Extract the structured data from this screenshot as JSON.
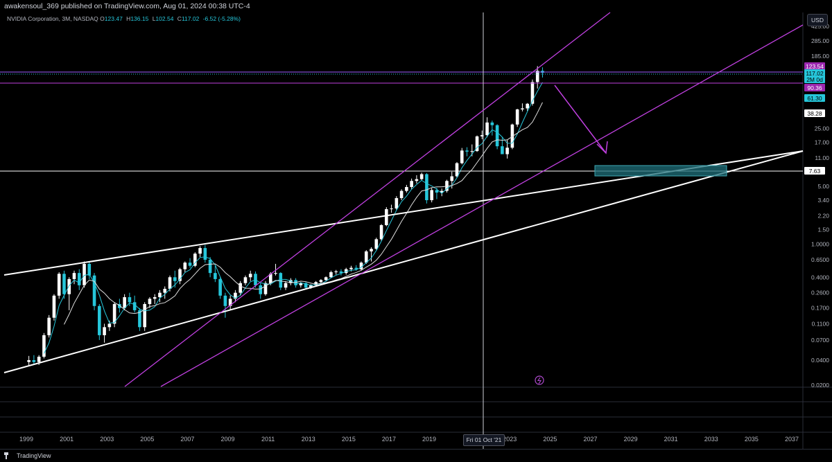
{
  "header": {
    "published": "awakensoul_369 published on TradingView.com, Aug 01, 2024 00:38 UTC-4"
  },
  "legend": {
    "symbol": "NVIDIA Corporation, 3M, NASDAQ",
    "open_label": "O",
    "open": "123.47",
    "high_label": "H",
    "high": "136.15",
    "low_label": "L",
    "low": "102.54",
    "close_label": "C",
    "close": "117.02",
    "change": "-6.52 (-5.28%)"
  },
  "currency": "USD",
  "price_scale": [
    "425.00",
    "285.00",
    "185.00",
    "25.00",
    "17.00",
    "11.00",
    "5.00",
    "3.40",
    "2.20",
    "1.50",
    "1.0000",
    "0.6500",
    "0.4000",
    "0.2600",
    "0.1700",
    "0.1100",
    "0.0700",
    "0.0400",
    "0.0200"
  ],
  "price_tags": [
    {
      "text": "123.54",
      "bg": "#9c27b0",
      "fg": "#ffffff"
    },
    {
      "text": "117.02",
      "bg": "#26c6da",
      "fg": "#000000"
    },
    {
      "text": "2M 0d",
      "bg": "#26c6da",
      "fg": "#000000"
    },
    {
      "text": "90.36",
      "bg": "#9c27b0",
      "fg": "#ffffff"
    },
    {
      "text": "61.30",
      "bg": "#26c6da",
      "fg": "#000000"
    },
    {
      "text": "38.28",
      "bg": "#ffffff",
      "fg": "#000000"
    },
    {
      "text": "7.63",
      "bg": "#ffffff",
      "fg": "#000000"
    }
  ],
  "time_scale": [
    "1999",
    "2001",
    "2003",
    "2005",
    "2007",
    "2009",
    "2011",
    "2013",
    "2015",
    "2017",
    "2019",
    "2023",
    "2025",
    "2027",
    "2029",
    "2031",
    "2033",
    "2035",
    "2037"
  ],
  "crosshair_date": "Fri 01 Oct '21",
  "footer": {
    "brand": "TradingView"
  },
  "colors": {
    "bull": "#ffffff",
    "bear": "#26c6da",
    "channel": "#c040e0",
    "trend": "#ffffff",
    "target_box": "#1f6f7a",
    "arrow": "#c040e0"
  },
  "icons": {
    "alert": "lightning-icon"
  },
  "chart_data": {
    "type": "candlestick",
    "symbol": "NVDA",
    "interval": "3M",
    "scale": "log",
    "ylim": [
      0.018,
      500
    ],
    "candles": [
      {
        "t": 1999.0,
        "o": 0.038,
        "h": 0.045,
        "l": 0.034,
        "c": 0.04
      },
      {
        "t": 1999.25,
        "o": 0.04,
        "h": 0.046,
        "l": 0.036,
        "c": 0.038
      },
      {
        "t": 1999.5,
        "o": 0.038,
        "h": 0.046,
        "l": 0.035,
        "c": 0.044
      },
      {
        "t": 1999.75,
        "o": 0.044,
        "h": 0.085,
        "l": 0.042,
        "c": 0.08
      },
      {
        "t": 2000.0,
        "o": 0.08,
        "h": 0.14,
        "l": 0.075,
        "c": 0.13
      },
      {
        "t": 2000.25,
        "o": 0.13,
        "h": 0.25,
        "l": 0.12,
        "c": 0.24
      },
      {
        "t": 2000.5,
        "o": 0.24,
        "h": 0.46,
        "l": 0.22,
        "c": 0.44
      },
      {
        "t": 2000.75,
        "o": 0.44,
        "h": 0.48,
        "l": 0.22,
        "c": 0.25
      },
      {
        "t": 2001.0,
        "o": 0.25,
        "h": 0.4,
        "l": 0.16,
        "c": 0.38
      },
      {
        "t": 2001.25,
        "o": 0.38,
        "h": 0.48,
        "l": 0.33,
        "c": 0.45
      },
      {
        "t": 2001.5,
        "o": 0.45,
        "h": 0.5,
        "l": 0.28,
        "c": 0.32
      },
      {
        "t": 2001.75,
        "o": 0.32,
        "h": 0.62,
        "l": 0.3,
        "c": 0.58
      },
      {
        "t": 2002.0,
        "o": 0.58,
        "h": 0.62,
        "l": 0.38,
        "c": 0.42
      },
      {
        "t": 2002.25,
        "o": 0.42,
        "h": 0.45,
        "l": 0.16,
        "c": 0.18
      },
      {
        "t": 2002.5,
        "o": 0.18,
        "h": 0.19,
        "l": 0.07,
        "c": 0.08
      },
      {
        "t": 2002.75,
        "o": 0.08,
        "h": 0.11,
        "l": 0.065,
        "c": 0.1
      },
      {
        "t": 2003.0,
        "o": 0.1,
        "h": 0.12,
        "l": 0.09,
        "c": 0.11
      },
      {
        "t": 2003.25,
        "o": 0.11,
        "h": 0.2,
        "l": 0.1,
        "c": 0.19
      },
      {
        "t": 2003.5,
        "o": 0.19,
        "h": 0.22,
        "l": 0.15,
        "c": 0.17
      },
      {
        "t": 2003.75,
        "o": 0.17,
        "h": 0.25,
        "l": 0.16,
        "c": 0.23
      },
      {
        "t": 2004.0,
        "o": 0.23,
        "h": 0.26,
        "l": 0.18,
        "c": 0.2
      },
      {
        "t": 2004.25,
        "o": 0.2,
        "h": 0.24,
        "l": 0.15,
        "c": 0.16
      },
      {
        "t": 2004.5,
        "o": 0.16,
        "h": 0.17,
        "l": 0.09,
        "c": 0.1
      },
      {
        "t": 2004.75,
        "o": 0.1,
        "h": 0.2,
        "l": 0.09,
        "c": 0.19
      },
      {
        "t": 2005.0,
        "o": 0.19,
        "h": 0.23,
        "l": 0.17,
        "c": 0.22
      },
      {
        "t": 2005.25,
        "o": 0.22,
        "h": 0.25,
        "l": 0.19,
        "c": 0.23
      },
      {
        "t": 2005.5,
        "o": 0.23,
        "h": 0.28,
        "l": 0.2,
        "c": 0.26
      },
      {
        "t": 2005.75,
        "o": 0.26,
        "h": 0.31,
        "l": 0.22,
        "c": 0.29
      },
      {
        "t": 2006.0,
        "o": 0.29,
        "h": 0.42,
        "l": 0.27,
        "c": 0.4
      },
      {
        "t": 2006.25,
        "o": 0.4,
        "h": 0.48,
        "l": 0.3,
        "c": 0.36
      },
      {
        "t": 2006.5,
        "o": 0.36,
        "h": 0.52,
        "l": 0.33,
        "c": 0.5
      },
      {
        "t": 2006.75,
        "o": 0.5,
        "h": 0.62,
        "l": 0.46,
        "c": 0.6
      },
      {
        "t": 2007.0,
        "o": 0.6,
        "h": 0.68,
        "l": 0.52,
        "c": 0.55
      },
      {
        "t": 2007.25,
        "o": 0.55,
        "h": 0.8,
        "l": 0.53,
        "c": 0.77
      },
      {
        "t": 2007.5,
        "o": 0.77,
        "h": 0.95,
        "l": 0.7,
        "c": 0.9
      },
      {
        "t": 2007.75,
        "o": 0.9,
        "h": 0.98,
        "l": 0.6,
        "c": 0.65
      },
      {
        "t": 2008.0,
        "o": 0.65,
        "h": 0.7,
        "l": 0.4,
        "c": 0.45
      },
      {
        "t": 2008.25,
        "o": 0.45,
        "h": 0.55,
        "l": 0.35,
        "c": 0.38
      },
      {
        "t": 2008.5,
        "o": 0.38,
        "h": 0.4,
        "l": 0.22,
        "c": 0.24
      },
      {
        "t": 2008.75,
        "o": 0.24,
        "h": 0.26,
        "l": 0.13,
        "c": 0.18
      },
      {
        "t": 2009.0,
        "o": 0.18,
        "h": 0.24,
        "l": 0.16,
        "c": 0.22
      },
      {
        "t": 2009.25,
        "o": 0.22,
        "h": 0.28,
        "l": 0.2,
        "c": 0.26
      },
      {
        "t": 2009.5,
        "o": 0.26,
        "h": 0.36,
        "l": 0.24,
        "c": 0.34
      },
      {
        "t": 2009.75,
        "o": 0.34,
        "h": 0.42,
        "l": 0.32,
        "c": 0.4
      },
      {
        "t": 2010.0,
        "o": 0.4,
        "h": 0.48,
        "l": 0.36,
        "c": 0.44
      },
      {
        "t": 2010.25,
        "o": 0.44,
        "h": 0.47,
        "l": 0.3,
        "c": 0.32
      },
      {
        "t": 2010.5,
        "o": 0.32,
        "h": 0.34,
        "l": 0.22,
        "c": 0.25
      },
      {
        "t": 2010.75,
        "o": 0.25,
        "h": 0.36,
        "l": 0.24,
        "c": 0.34
      },
      {
        "t": 2011.0,
        "o": 0.34,
        "h": 0.46,
        "l": 0.32,
        "c": 0.44
      },
      {
        "t": 2011.25,
        "o": 0.44,
        "h": 0.58,
        "l": 0.42,
        "c": 0.45
      },
      {
        "t": 2011.5,
        "o": 0.45,
        "h": 0.46,
        "l": 0.28,
        "c": 0.3
      },
      {
        "t": 2011.75,
        "o": 0.3,
        "h": 0.36,
        "l": 0.28,
        "c": 0.34
      },
      {
        "t": 2012.0,
        "o": 0.34,
        "h": 0.39,
        "l": 0.32,
        "c": 0.37
      },
      {
        "t": 2012.25,
        "o": 0.37,
        "h": 0.39,
        "l": 0.3,
        "c": 0.32
      },
      {
        "t": 2012.5,
        "o": 0.32,
        "h": 0.35,
        "l": 0.3,
        "c": 0.34
      },
      {
        "t": 2012.75,
        "o": 0.34,
        "h": 0.35,
        "l": 0.29,
        "c": 0.3
      },
      {
        "t": 2013.0,
        "o": 0.3,
        "h": 0.33,
        "l": 0.29,
        "c": 0.32
      },
      {
        "t": 2013.25,
        "o": 0.32,
        "h": 0.36,
        "l": 0.31,
        "c": 0.35
      },
      {
        "t": 2013.5,
        "o": 0.35,
        "h": 0.38,
        "l": 0.33,
        "c": 0.37
      },
      {
        "t": 2013.75,
        "o": 0.37,
        "h": 0.41,
        "l": 0.36,
        "c": 0.4
      },
      {
        "t": 2014.0,
        "o": 0.4,
        "h": 0.48,
        "l": 0.39,
        "c": 0.46
      },
      {
        "t": 2014.25,
        "o": 0.46,
        "h": 0.49,
        "l": 0.43,
        "c": 0.47
      },
      {
        "t": 2014.5,
        "o": 0.47,
        "h": 0.5,
        "l": 0.42,
        "c": 0.45
      },
      {
        "t": 2014.75,
        "o": 0.45,
        "h": 0.52,
        "l": 0.43,
        "c": 0.5
      },
      {
        "t": 2015.0,
        "o": 0.5,
        "h": 0.55,
        "l": 0.47,
        "c": 0.52
      },
      {
        "t": 2015.25,
        "o": 0.52,
        "h": 0.56,
        "l": 0.48,
        "c": 0.5
      },
      {
        "t": 2015.5,
        "o": 0.5,
        "h": 0.62,
        "l": 0.48,
        "c": 0.6
      },
      {
        "t": 2015.75,
        "o": 0.6,
        "h": 0.85,
        "l": 0.58,
        "c": 0.82
      },
      {
        "t": 2016.0,
        "o": 0.82,
        "h": 0.92,
        "l": 0.62,
        "c": 0.88
      },
      {
        "t": 2016.25,
        "o": 0.88,
        "h": 1.2,
        "l": 0.86,
        "c": 1.15
      },
      {
        "t": 2016.5,
        "o": 1.15,
        "h": 1.75,
        "l": 1.1,
        "c": 1.7
      },
      {
        "t": 2016.75,
        "o": 1.7,
        "h": 2.8,
        "l": 1.65,
        "c": 2.65
      },
      {
        "t": 2017.0,
        "o": 2.65,
        "h": 3.0,
        "l": 2.4,
        "c": 2.7
      },
      {
        "t": 2017.25,
        "o": 2.7,
        "h": 3.8,
        "l": 2.6,
        "c": 3.6
      },
      {
        "t": 2017.5,
        "o": 3.6,
        "h": 4.6,
        "l": 3.4,
        "c": 4.4
      },
      {
        "t": 2017.75,
        "o": 4.4,
        "h": 5.2,
        "l": 4.2,
        "c": 4.9
      },
      {
        "t": 2018.0,
        "o": 4.9,
        "h": 6.2,
        "l": 4.6,
        "c": 5.8
      },
      {
        "t": 2018.25,
        "o": 5.8,
        "h": 6.8,
        "l": 5.4,
        "c": 6.1
      },
      {
        "t": 2018.5,
        "o": 6.1,
        "h": 7.3,
        "l": 5.9,
        "c": 7.0
      },
      {
        "t": 2018.75,
        "o": 7.0,
        "h": 7.2,
        "l": 3.1,
        "c": 3.4
      },
      {
        "t": 2019.0,
        "o": 3.4,
        "h": 4.8,
        "l": 3.2,
        "c": 4.5
      },
      {
        "t": 2019.25,
        "o": 4.5,
        "h": 4.8,
        "l": 3.5,
        "c": 4.2
      },
      {
        "t": 2019.5,
        "o": 4.2,
        "h": 4.7,
        "l": 3.8,
        "c": 4.4
      },
      {
        "t": 2019.75,
        "o": 4.4,
        "h": 6.0,
        "l": 4.2,
        "c": 5.8
      },
      {
        "t": 2020.0,
        "o": 5.8,
        "h": 7.5,
        "l": 4.7,
        "c": 6.6
      },
      {
        "t": 2020.25,
        "o": 6.6,
        "h": 9.8,
        "l": 6.4,
        "c": 9.5
      },
      {
        "t": 2020.5,
        "o": 9.5,
        "h": 14.5,
        "l": 9.2,
        "c": 13.5
      },
      {
        "t": 2020.75,
        "o": 13.5,
        "h": 14.8,
        "l": 11.5,
        "c": 13.1
      },
      {
        "t": 2021.0,
        "o": 13.1,
        "h": 16.0,
        "l": 11.5,
        "c": 13.3
      },
      {
        "t": 2021.25,
        "o": 13.3,
        "h": 20.5,
        "l": 13.0,
        "c": 20.0
      },
      {
        "t": 2021.5,
        "o": 20.0,
        "h": 23.5,
        "l": 18.5,
        "c": 20.7
      },
      {
        "t": 2021.75,
        "o": 20.7,
        "h": 34.0,
        "l": 19.5,
        "c": 29.4
      },
      {
        "t": 2022.0,
        "o": 29.4,
        "h": 31.0,
        "l": 20.5,
        "c": 27.3
      },
      {
        "t": 2022.25,
        "o": 27.3,
        "h": 28.0,
        "l": 14.0,
        "c": 15.2
      },
      {
        "t": 2022.5,
        "o": 15.2,
        "h": 19.5,
        "l": 13.5,
        "c": 12.2
      },
      {
        "t": 2022.75,
        "o": 12.2,
        "h": 18.0,
        "l": 10.8,
        "c": 14.6
      },
      {
        "t": 2023.0,
        "o": 14.6,
        "h": 28.5,
        "l": 14.0,
        "c": 27.8
      },
      {
        "t": 2023.25,
        "o": 27.8,
        "h": 43.0,
        "l": 26.0,
        "c": 42.3
      },
      {
        "t": 2023.5,
        "o": 42.3,
        "h": 50.0,
        "l": 40.0,
        "c": 43.5
      },
      {
        "t": 2023.75,
        "o": 43.5,
        "h": 50.5,
        "l": 40.5,
        "c": 49.5
      },
      {
        "t": 2024.0,
        "o": 49.5,
        "h": 97.0,
        "l": 47.0,
        "c": 90.4
      },
      {
        "t": 2024.25,
        "o": 90.4,
        "h": 140.7,
        "l": 75.6,
        "c": 123.5
      },
      {
        "t": 2024.5,
        "o": 123.47,
        "h": 136.15,
        "l": 102.54,
        "c": 117.02
      }
    ]
  }
}
